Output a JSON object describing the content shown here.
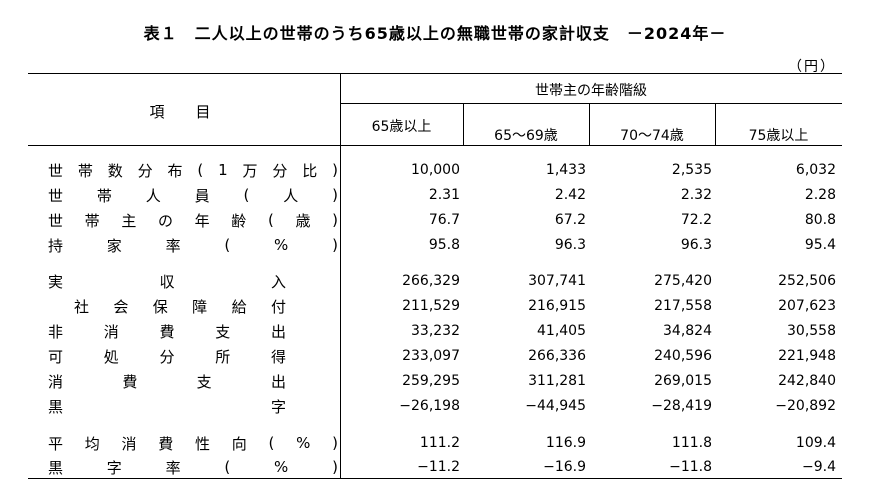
{
  "title": "表１　二人以上の世帯のうち65歳以上の無職世帯の家計収支　－2024年－",
  "unit": "（円）",
  "header": {
    "item": "項　目",
    "group": "世帯主の年齢階級",
    "columns": [
      "65歳以上",
      "65～69歳",
      "70～74歳",
      "75歳以上"
    ]
  },
  "rows": [
    {
      "label": "世帯数分布(1万分比)",
      "values": [
        "10,000",
        "1,433",
        "2,535",
        "6,032"
      ]
    },
    {
      "label": "世帯人員(人)",
      "values": [
        "2.31",
        "2.42",
        "2.32",
        "2.28"
      ]
    },
    {
      "label": "世帯主の年齢(歳)",
      "values": [
        "76.7",
        "67.2",
        "72.2",
        "80.8"
      ]
    },
    {
      "label": "持家率(%)",
      "values": [
        "95.8",
        "96.3",
        "96.3",
        "95.4"
      ]
    },
    {
      "label": "実収入",
      "values": [
        "266,329",
        "307,741",
        "275,420",
        "252,506"
      ]
    },
    {
      "label": "社会保障給付",
      "values": [
        "211,529",
        "216,915",
        "217,558",
        "207,623"
      ]
    },
    {
      "label": "非消費支出",
      "values": [
        "33,232",
        "41,405",
        "34,824",
        "30,558"
      ]
    },
    {
      "label": "可処分所得",
      "values": [
        "233,097",
        "266,336",
        "240,596",
        "221,948"
      ]
    },
    {
      "label": "消費支出",
      "values": [
        "259,295",
        "311,281",
        "269,015",
        "242,840"
      ]
    },
    {
      "label": "黒字",
      "values": [
        "−26,198",
        "−44,945",
        "−28,419",
        "−20,892"
      ]
    },
    {
      "label": "平均消費性向(%)",
      "values": [
        "111.2",
        "116.9",
        "111.8",
        "109.4"
      ]
    },
    {
      "label": "黒字率(%)",
      "values": [
        "−11.2",
        "−16.9",
        "−11.8",
        "−9.4"
      ]
    }
  ]
}
